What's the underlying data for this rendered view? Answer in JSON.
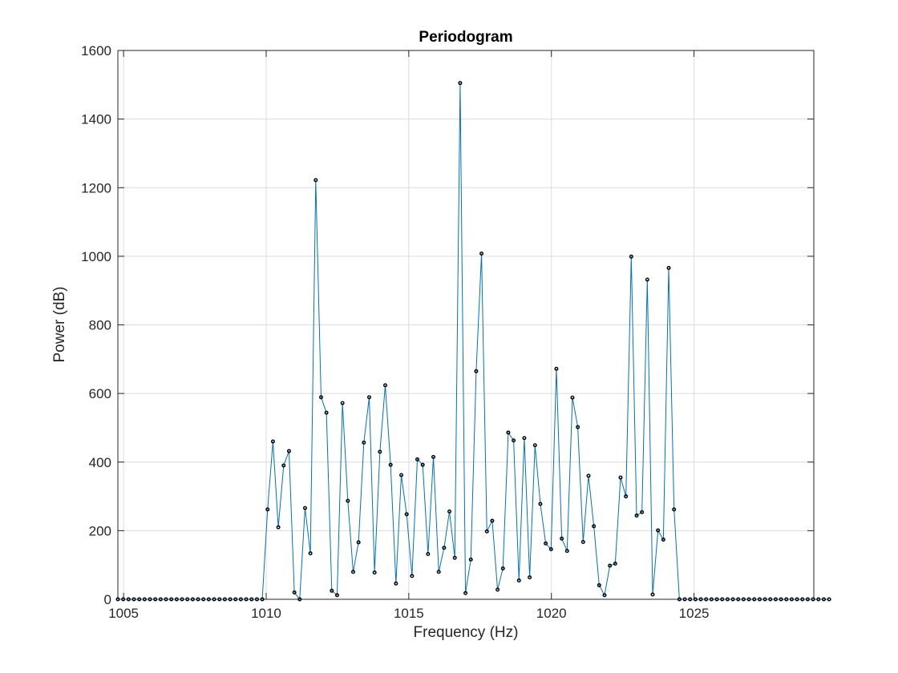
{
  "chart_data": {
    "type": "line",
    "title": "Periodogram",
    "xlabel": "Frequency (Hz)",
    "ylabel": "Power (dB)",
    "xlim": [
      1004.8,
      1029.2
    ],
    "ylim": [
      0,
      1600
    ],
    "xticks": [
      1005,
      1010,
      1015,
      1020,
      1025
    ],
    "yticks": [
      0,
      200,
      400,
      600,
      800,
      1000,
      1200,
      1400,
      1600
    ],
    "grid": true,
    "line_color": "#0072bd",
    "marker_color": "#000000",
    "series": [
      {
        "x_start": 1004.8,
        "x_step": 0.1875,
        "values": [
          0,
          0,
          0,
          0,
          0,
          0,
          0,
          0,
          0,
          0,
          0,
          0,
          0,
          0,
          0,
          0,
          0,
          0,
          0,
          0,
          0,
          0,
          0,
          0,
          0,
          0,
          0,
          0,
          262,
          460,
          210,
          390,
          432,
          20,
          0,
          266,
          134,
          1222,
          589,
          544,
          25,
          12,
          572,
          287,
          80,
          166,
          457,
          589,
          78,
          430,
          624,
          392,
          46,
          362,
          248,
          68,
          408,
          392,
          132,
          415,
          80,
          150,
          256,
          121,
          1505,
          18,
          116,
          665,
          1008,
          198,
          229,
          28,
          90,
          486,
          463,
          55,
          470,
          64,
          449,
          278,
          163,
          146,
          672,
          177,
          141,
          588,
          502,
          167,
          360,
          213,
          41,
          12,
          98,
          104,
          355,
          300,
          999,
          244,
          254,
          932,
          14,
          201,
          174,
          966,
          262,
          0,
          0,
          0,
          0,
          0,
          0,
          0,
          0,
          0,
          0,
          0,
          0,
          0,
          0,
          0,
          0,
          0,
          0,
          0,
          0,
          0,
          0,
          0,
          0,
          0,
          0,
          0,
          0,
          0
        ]
      }
    ]
  }
}
